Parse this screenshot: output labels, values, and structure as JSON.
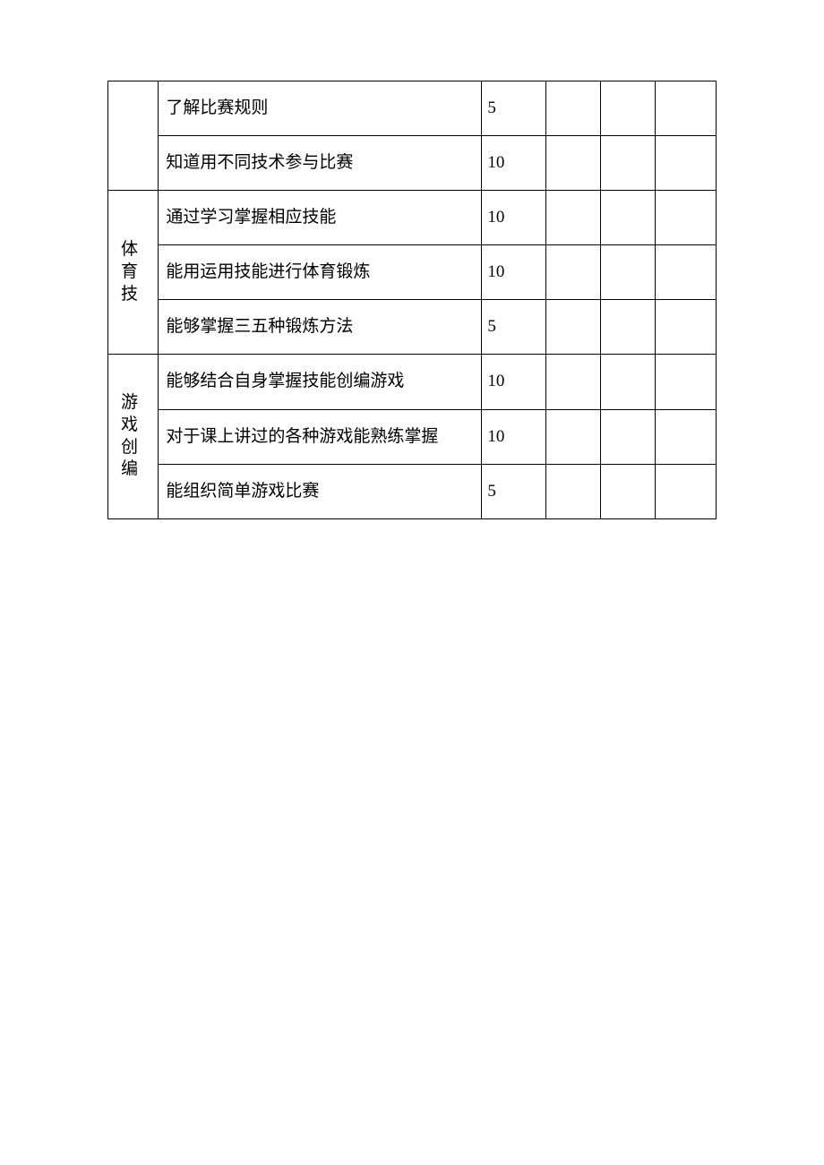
{
  "table": {
    "sections": [
      {
        "category": "",
        "rows": [
          {
            "desc": "了解比赛规则",
            "score": "5"
          },
          {
            "desc": "知道用不同技术参与比赛",
            "score": "10"
          }
        ]
      },
      {
        "category": "体育技",
        "rows": [
          {
            "desc": "通过学习掌握相应技能",
            "score": "10"
          },
          {
            "desc": "能用运用技能进行体育锻炼",
            "score": "10"
          },
          {
            "desc": "能够掌握三五种锻炼方法",
            "score": "5"
          }
        ]
      },
      {
        "category": "游戏创编",
        "rows": [
          {
            "desc": "能够结合自身掌握技能创编游戏",
            "score": "10"
          },
          {
            "desc": "对于课上讲过的各种游戏能熟练掌握",
            "score": "10"
          },
          {
            "desc": "能组织简单游戏比赛",
            "score": "5"
          }
        ]
      }
    ]
  },
  "colors": {
    "background": "#ffffff",
    "text": "#000000",
    "border": "#000000"
  },
  "typography": {
    "font_family": "SimSun",
    "font_size_pt": 14
  }
}
